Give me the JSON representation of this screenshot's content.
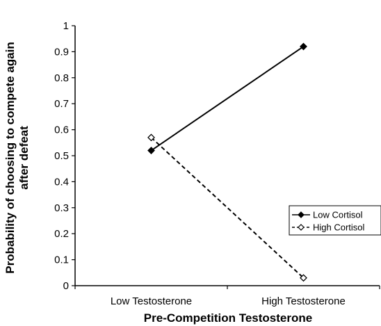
{
  "chart_data": {
    "type": "line",
    "title": "",
    "xlabel": "Pre-Competition Testosterone",
    "ylabel_line1": "Probability of choosing to compete again",
    "ylabel_line2": "after defeat",
    "categories": [
      "Low Testosterone",
      "High Testosterone"
    ],
    "ylim": [
      0,
      1
    ],
    "yticks": [
      "0",
      "0.1",
      "0.2",
      "0.3",
      "0.4",
      "0.5",
      "0.6",
      "0.7",
      "0.8",
      "0.9",
      "1"
    ],
    "grid": false,
    "legend_position": "right",
    "series": [
      {
        "name": "Low Cortisol",
        "values": [
          0.52,
          0.92
        ],
        "line_style": "solid",
        "marker": "filled-diamond",
        "color": "#000000"
      },
      {
        "name": "High Cortisol",
        "values": [
          0.57,
          0.03
        ],
        "line_style": "dashed",
        "marker": "open-diamond",
        "color": "#000000"
      }
    ]
  }
}
